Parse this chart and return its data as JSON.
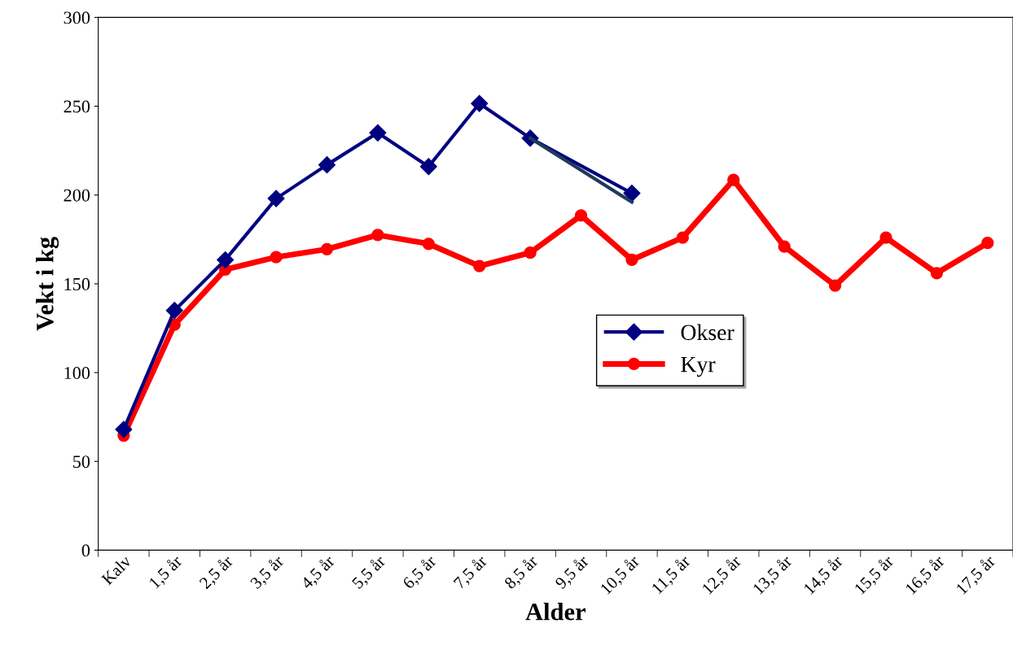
{
  "chart_data": {
    "type": "line",
    "xlabel": "Alder",
    "ylabel": "Vekt i kg",
    "categories": [
      "Kalv",
      "1,5 år",
      "2,5 år",
      "3,5 år",
      "4,5 år",
      "5,5 år",
      "6,5 år",
      "7,5 år",
      "8,5 år",
      "9,5 år",
      "10,5 år",
      "11,5 år",
      "12,5 år",
      "13,5 år",
      "14,5 år",
      "15,5 år",
      "16,5 år",
      "17,5 år"
    ],
    "series": [
      {
        "name": "Okser",
        "color": "#000080",
        "marker": "diamond",
        "values": [
          68,
          135,
          163.5,
          198,
          217,
          235,
          216,
          251.5,
          232,
          null,
          201,
          null,
          null,
          null,
          null,
          null,
          null,
          null
        ]
      },
      {
        "name": "Kyr",
        "color": "#ff0000",
        "marker": "circle",
        "values": [
          64.5,
          127,
          158,
          165,
          169.5,
          177.5,
          172.5,
          160,
          167.5,
          188.5,
          163.5,
          176,
          208.5,
          171,
          149,
          176,
          156,
          173
        ]
      },
      {
        "color": "#1f3a5a",
        "marker": "none",
        "values": [
          null,
          null,
          null,
          null,
          null,
          null,
          null,
          null,
          232,
          null,
          196,
          null,
          null,
          null,
          null,
          null,
          null,
          null
        ]
      }
    ],
    "ylim": [
      0,
      300
    ],
    "yticks": [
      0,
      50,
      100,
      150,
      200,
      250,
      300
    ],
    "grid": false,
    "legend": "center"
  }
}
